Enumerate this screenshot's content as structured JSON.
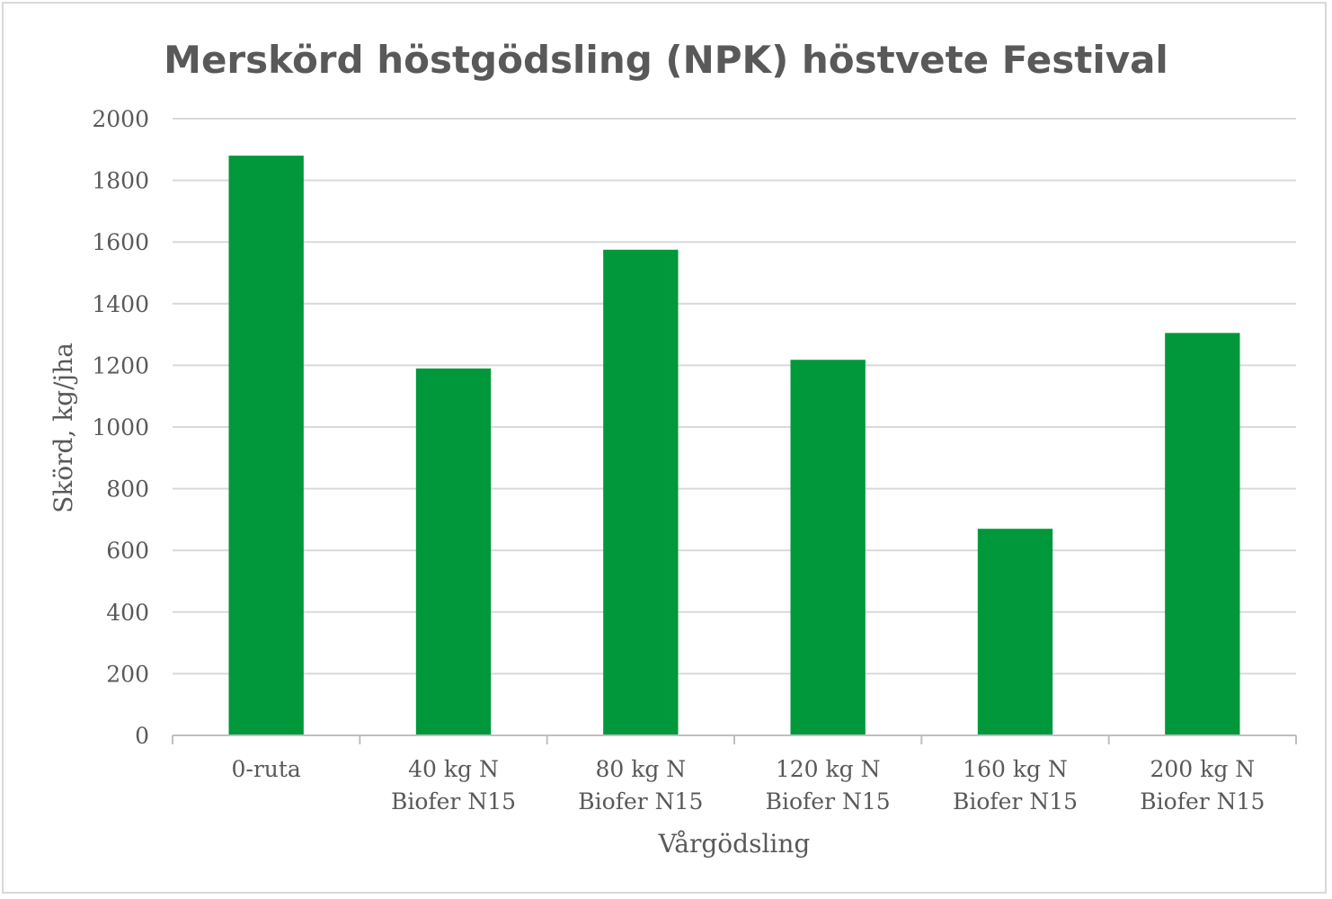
{
  "chart_data": {
    "type": "bar",
    "title": "Merskörd höstgödsling (NPK) höstvete Festival",
    "xlabel": "Vårgödsling",
    "ylabel": "Skörd, kg/jha",
    "categories": [
      [
        "0-ruta"
      ],
      [
        "40 kg N",
        "Biofer N15"
      ],
      [
        "80 kg N",
        "Biofer N15"
      ],
      [
        "120 kg N",
        "Biofer N15"
      ],
      [
        "160 kg N",
        "Biofer N15"
      ],
      [
        "200 kg N",
        "Biofer N15"
      ]
    ],
    "values": [
      1880,
      1190,
      1575,
      1218,
      670,
      1305
    ],
    "ylim": [
      0,
      2000
    ],
    "yticks": [
      0,
      200,
      400,
      600,
      800,
      1000,
      1200,
      1400,
      1600,
      1800,
      2000
    ],
    "bar_color": "#00983a",
    "grid": true,
    "legend": "none"
  }
}
